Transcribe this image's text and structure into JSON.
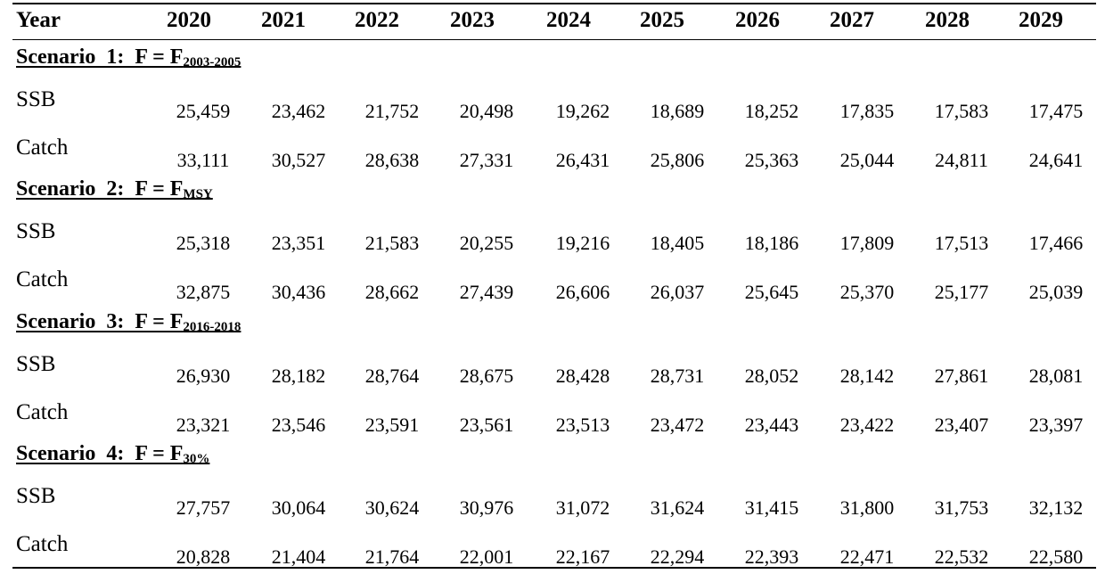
{
  "table": {
    "header_label": "Year",
    "years": [
      "2020",
      "2021",
      "2022",
      "2023",
      "2024",
      "2025",
      "2026",
      "2027",
      "2028",
      "2029"
    ],
    "scenarios": [
      {
        "title": "Scenario  1:  F = F",
        "subscript": "2003-2005",
        "ssb_label": "SSB",
        "catch_label": "Catch",
        "ssb": [
          "25,459",
          "23,462",
          "21,752",
          "20,498",
          "19,262",
          "18,689",
          "18,252",
          "17,835",
          "17,583",
          "17,475"
        ],
        "catch": [
          "33,111",
          "30,527",
          "28,638",
          "27,331",
          "26,431",
          "25,806",
          "25,363",
          "25,044",
          "24,811",
          "24,641"
        ]
      },
      {
        "title": "Scenario  2:  F = F",
        "subscript": "MSY",
        "ssb_label": "SSB",
        "catch_label": "Catch",
        "ssb": [
          "25,318",
          "23,351",
          "21,583",
          "20,255",
          "19,216",
          "18,405",
          "18,186",
          "17,809",
          "17,513",
          "17,466"
        ],
        "catch": [
          "32,875",
          "30,436",
          "28,662",
          "27,439",
          "26,606",
          "26,037",
          "25,645",
          "25,370",
          "25,177",
          "25,039"
        ]
      },
      {
        "title": "Scenario  3:  F = F",
        "subscript": "2016-2018",
        "ssb_label": "SSB",
        "catch_label": "Catch",
        "ssb": [
          "26,930",
          "28,182",
          "28,764",
          "28,675",
          "28,428",
          "28,731",
          "28,052",
          "28,142",
          "27,861",
          "28,081"
        ],
        "catch": [
          "23,321",
          "23,546",
          "23,591",
          "23,561",
          "23,513",
          "23,472",
          "23,443",
          "23,422",
          "23,407",
          "23,397"
        ]
      },
      {
        "title": "Scenario  4:  F = F",
        "subscript": "30%",
        "ssb_label": "SSB",
        "catch_label": "Catch",
        "ssb": [
          "27,757",
          "30,064",
          "30,624",
          "30,976",
          "31,072",
          "31,624",
          "31,415",
          "31,800",
          "31,753",
          "32,132"
        ],
        "catch": [
          "20,828",
          "21,404",
          "21,764",
          "22,001",
          "22,167",
          "22,294",
          "22,393",
          "22,471",
          "22,532",
          "22,580"
        ]
      }
    ]
  }
}
